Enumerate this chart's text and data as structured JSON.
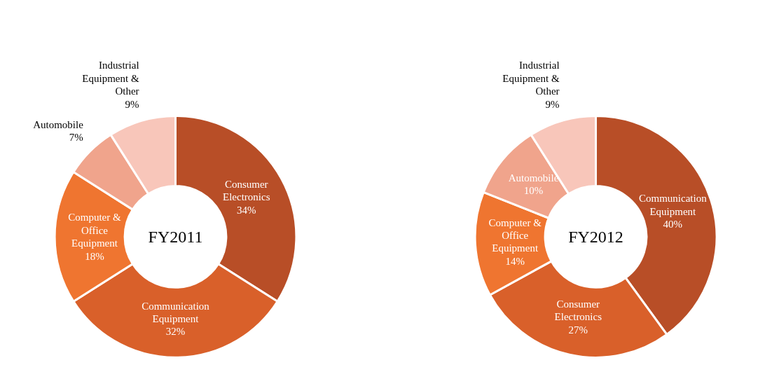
{
  "chart_data": [
    {
      "type": "donut",
      "title": "FY2011",
      "categories": [
        "Consumer Electronics",
        "Communication Equipment",
        "Computer & Office Equipment",
        "Automobile",
        "Industrial Equipment & Other"
      ],
      "values": [
        34,
        32,
        18,
        7,
        9
      ],
      "value_labels": [
        "34%",
        "32%",
        "18%",
        "7%",
        "9%"
      ],
      "colors": [
        "#b84e27",
        "#d9602a",
        "#ef7530",
        "#f0a48c",
        "#f8c6ba"
      ]
    },
    {
      "type": "donut",
      "title": "FY2012",
      "categories": [
        "Communication Equipment",
        "Consumer Electronics",
        "Computer & Office Equipment",
        "Automobile",
        "Industrial Equipment & Other"
      ],
      "values": [
        40,
        27,
        14,
        10,
        9
      ],
      "value_labels": [
        "40%",
        "27%",
        "14%",
        "10%",
        "9%"
      ],
      "colors": [
        "#b84e27",
        "#d9602a",
        "#ef7530",
        "#f0a48c",
        "#f8c6ba"
      ]
    }
  ]
}
